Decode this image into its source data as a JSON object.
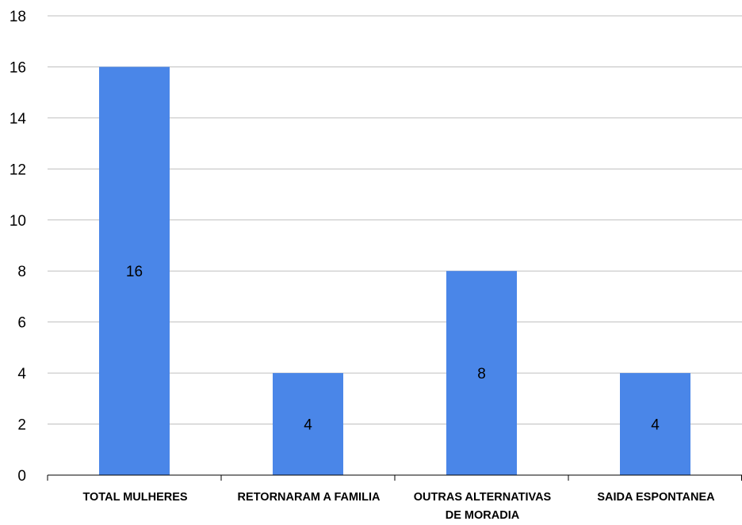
{
  "chart_data": {
    "type": "bar",
    "categories": [
      [
        "TOTAL MULHERES"
      ],
      [
        "RETORNARAM A FAMILIA"
      ],
      [
        "OUTRAS ALTERNATIVAS",
        "DE MORADIA"
      ],
      [
        "SAIDA ESPONTANEA"
      ]
    ],
    "series": [
      {
        "values": [
          16,
          4,
          8,
          4
        ],
        "color": "#4A86E8"
      }
    ],
    "data_labels": [
      "16",
      "4",
      "8",
      "4"
    ],
    "ylim": [
      0,
      18
    ],
    "yticks": [
      0,
      2,
      4,
      6,
      8,
      10,
      12,
      14,
      16,
      18
    ],
    "grid": true,
    "title": "",
    "xlabel": "",
    "ylabel": ""
  }
}
